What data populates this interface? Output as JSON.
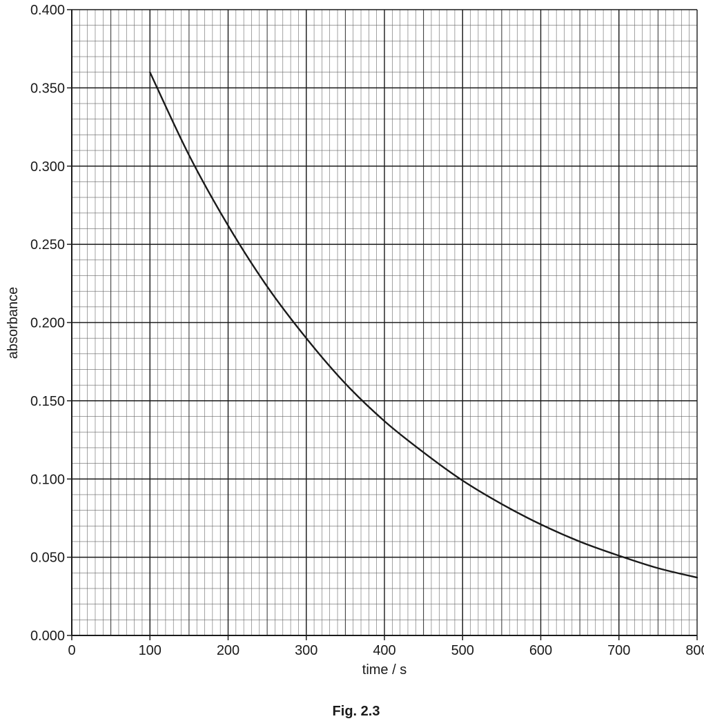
{
  "chart_data": {
    "type": "line",
    "title": "",
    "caption": "Fig. 2.3",
    "xlabel": "time / s",
    "ylabel": "absorbance",
    "xlim": [
      0,
      800
    ],
    "ylim": [
      0,
      0.4
    ],
    "x_ticks": [
      0,
      100,
      200,
      300,
      400,
      500,
      600,
      700,
      800
    ],
    "x_tick_labels": [
      "0",
      "100",
      "200",
      "300",
      "400",
      "500",
      "600",
      "700",
      "800"
    ],
    "y_ticks": [
      0,
      0.05,
      0.1,
      0.15,
      0.2,
      0.25,
      0.3,
      0.35,
      0.4
    ],
    "y_tick_labels": [
      "0.000",
      "0.050",
      "0.100",
      "0.150",
      "0.200",
      "0.250",
      "0.300",
      "0.350",
      "0.400"
    ],
    "grid": true,
    "grid_minor_x": 10,
    "grid_minor_y": 0.01,
    "series": [
      {
        "x": [
          100,
          150,
          200,
          250,
          300,
          350,
          400,
          450,
          500,
          550,
          600,
          650,
          700,
          750,
          800
        ],
        "y": [
          0.36,
          0.307,
          0.262,
          0.223,
          0.19,
          0.161,
          0.137,
          0.117,
          0.099,
          0.084,
          0.071,
          0.06,
          0.051,
          0.043,
          0.037
        ]
      }
    ],
    "colors": {
      "line": "#1a1a1a",
      "grid_minor": "#666666",
      "grid_major": "#1a1a1a"
    }
  }
}
